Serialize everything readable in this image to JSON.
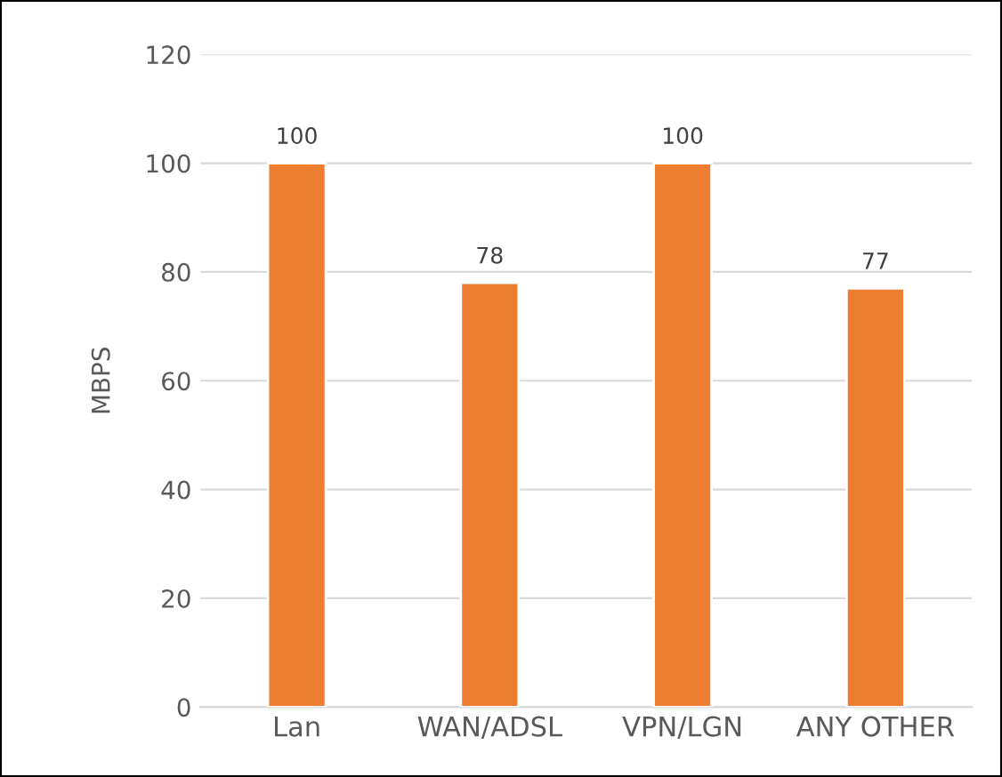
{
  "chart_data": {
    "type": "bar",
    "ylabel": "MBPS",
    "categories": [
      "Lan",
      "WAN/ADSL",
      "VPN/LGN",
      "ANY OTHER"
    ],
    "values": [
      100,
      78,
      100,
      77
    ],
    "color": "#ed7d31",
    "ylim": [
      0,
      120
    ],
    "yticks": [
      0,
      20,
      40,
      60,
      80,
      100,
      120
    ],
    "grid": "y",
    "data_labels": true
  }
}
